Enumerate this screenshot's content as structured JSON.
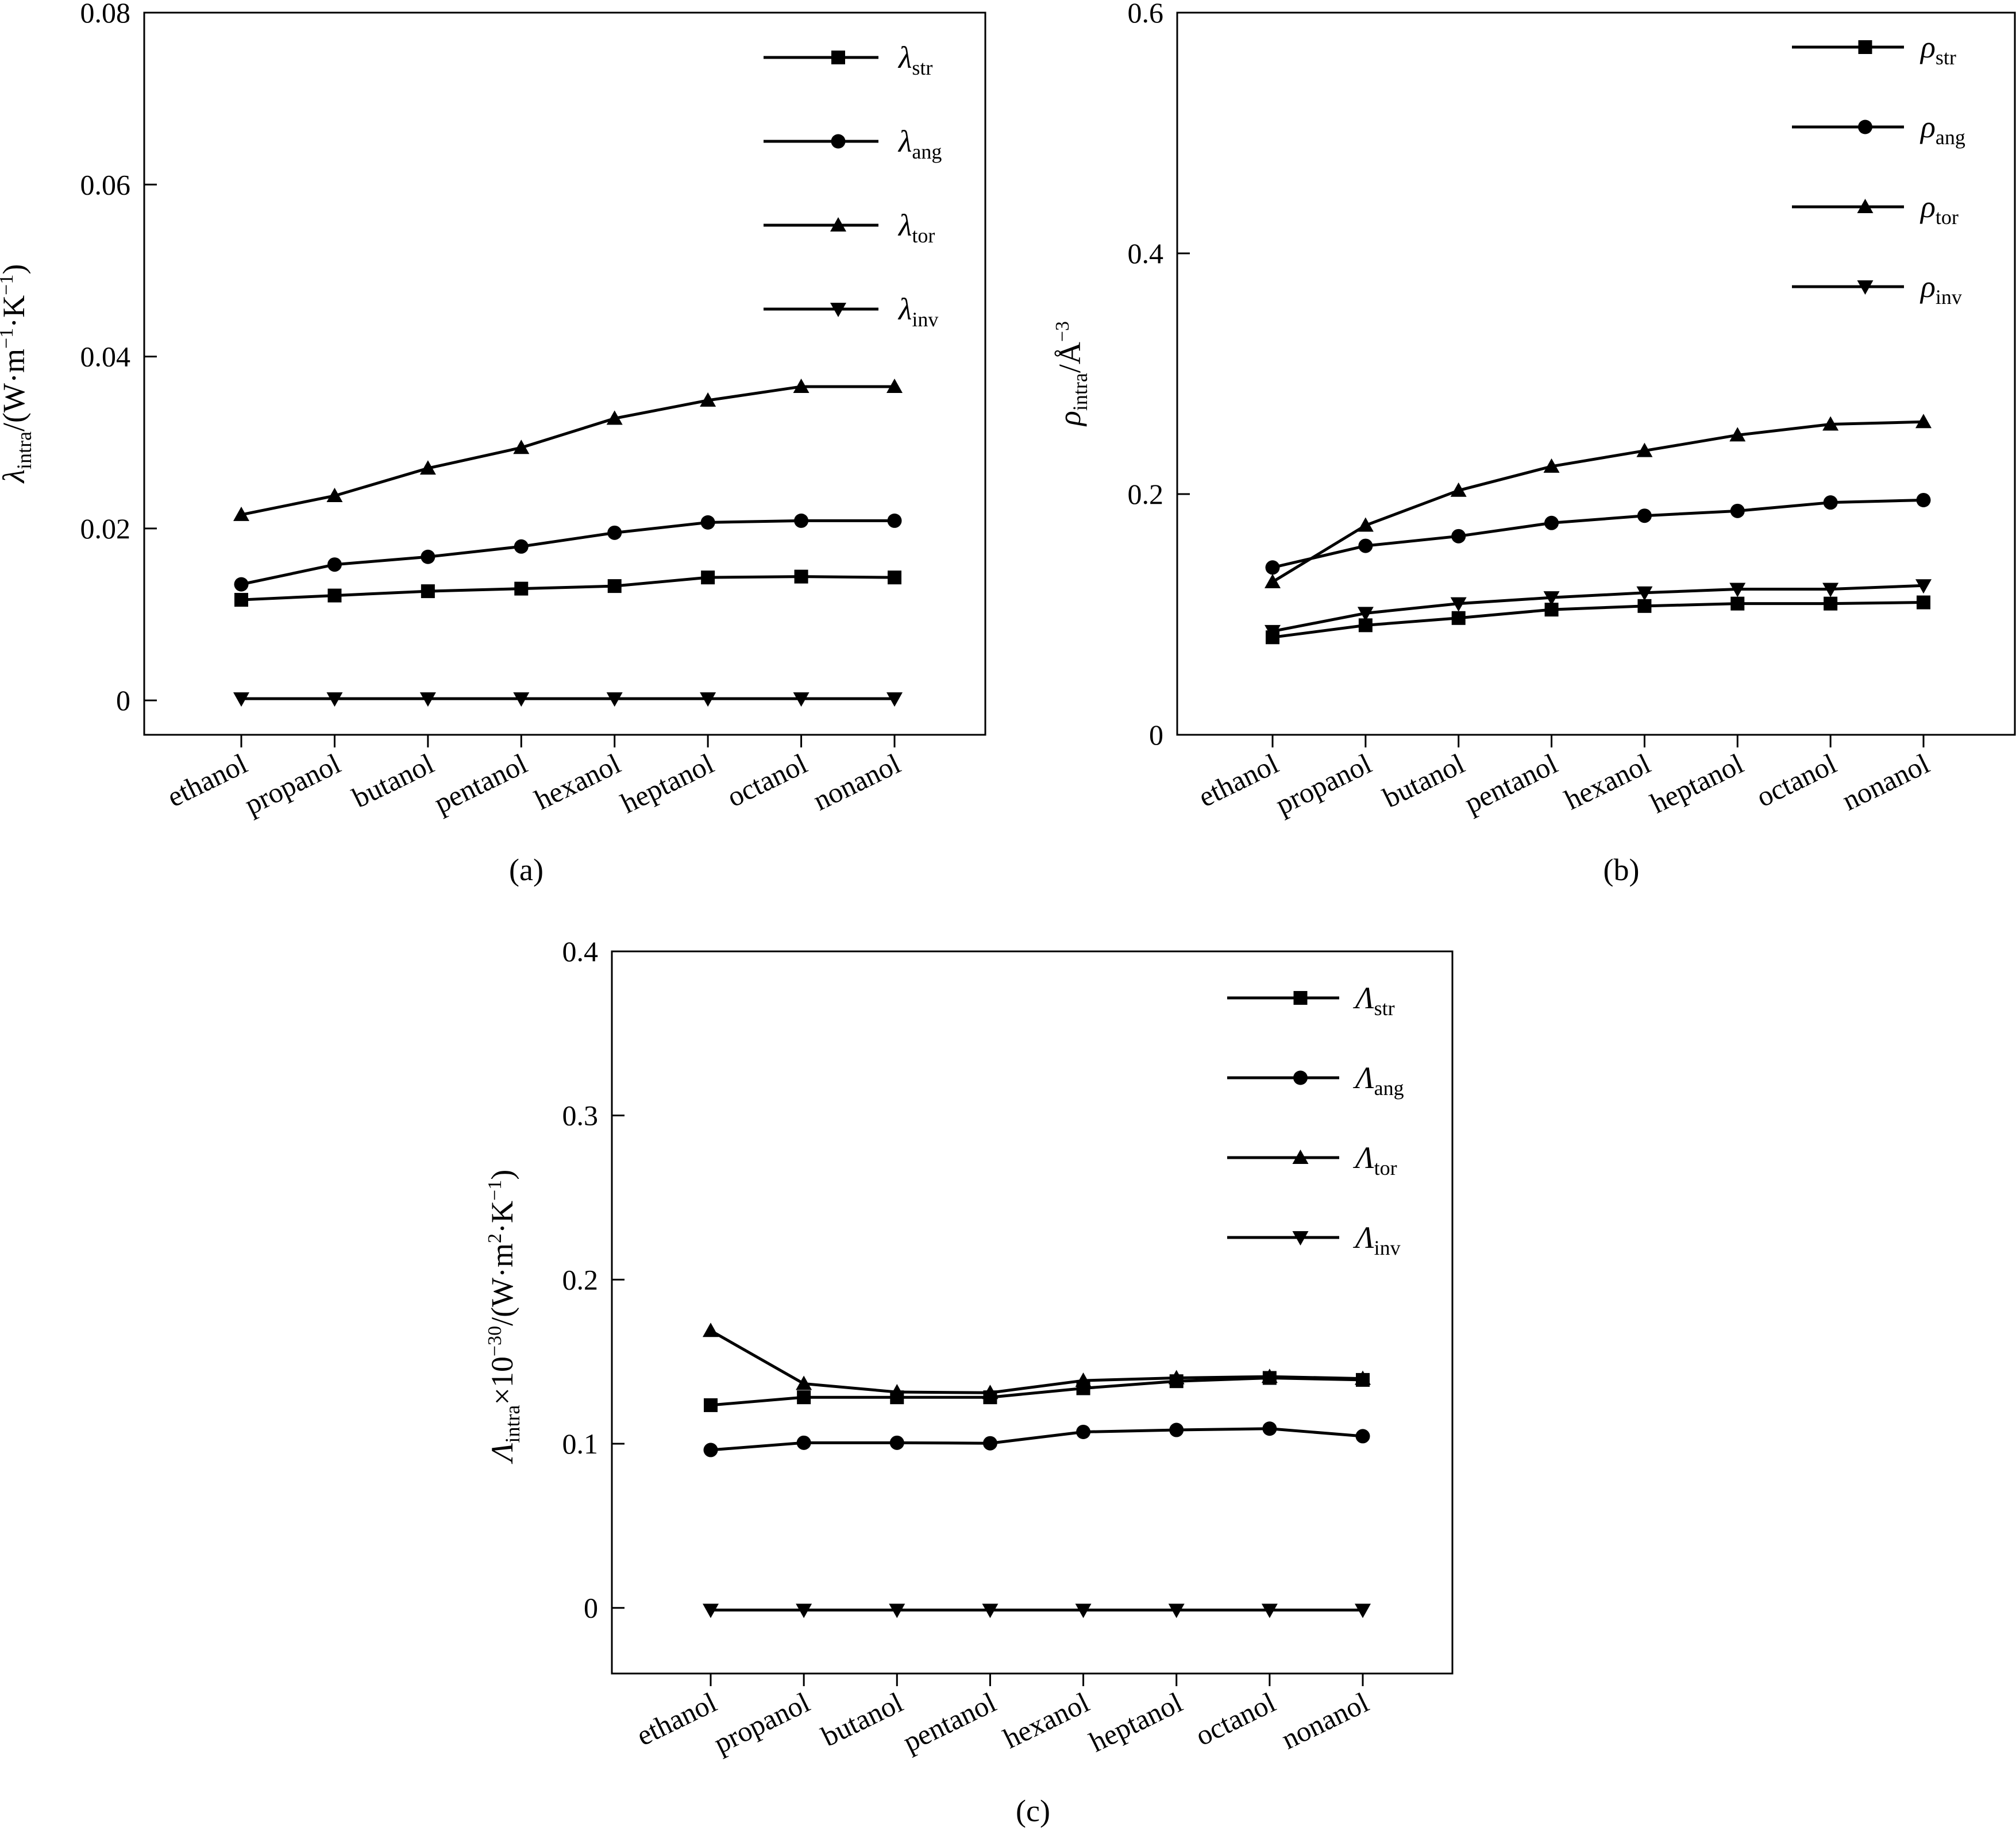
{
  "categories": [
    "ethanol",
    "propanol",
    "butanol",
    "pentanol",
    "hexanol",
    "heptanol",
    "octanol",
    "nonanol"
  ],
  "chart_data": [
    {
      "type": "line",
      "caption": "(a)",
      "ylabel": {
        "symbol": "λ",
        "sub": "intra",
        "rest": "/(W·m",
        "sup1": "−1",
        "mid": "·K",
        "sup2": "−1",
        "end": ")"
      },
      "ylim": [
        -0.004,
        0.08
      ],
      "yticks": [
        {
          "value": 0,
          "label": "0"
        },
        {
          "value": 0.02,
          "label": "0.02"
        },
        {
          "value": 0.04,
          "label": "0.04"
        },
        {
          "value": 0.06,
          "label": "0.06"
        },
        {
          "value": 0.08,
          "label": "0.08"
        }
      ],
      "legend_position": "top-right",
      "series": [
        {
          "symbol": "λ",
          "sub": "str",
          "marker": "square",
          "values": [
            0.0117,
            0.0122,
            0.0127,
            0.013,
            0.0133,
            0.0143,
            0.0144,
            0.0143
          ]
        },
        {
          "symbol": "λ",
          "sub": "ang",
          "marker": "circle",
          "values": [
            0.0135,
            0.0158,
            0.0167,
            0.0179,
            0.0195,
            0.0207,
            0.0209,
            0.0209
          ]
        },
        {
          "symbol": "λ",
          "sub": "tor",
          "marker": "triangle-up",
          "values": [
            0.0216,
            0.0238,
            0.027,
            0.0294,
            0.0328,
            0.0349,
            0.0365,
            0.0365
          ]
        },
        {
          "symbol": "λ",
          "sub": "inv",
          "marker": "triangle-down",
          "values": [
            0.0002,
            0.0002,
            0.0002,
            0.0002,
            0.0002,
            0.0002,
            0.0002,
            0.0002
          ]
        }
      ]
    },
    {
      "type": "line",
      "caption": "(b)",
      "ylabel": {
        "symbol": "ρ",
        "sub": "intra",
        "rest": "/Å",
        "sup1": "−3",
        "mid": "",
        "sup2": "",
        "end": ""
      },
      "ylim": [
        0,
        0.6
      ],
      "yticks": [
        {
          "value": 0,
          "label": "0"
        },
        {
          "value": 0.2,
          "label": "0.2"
        },
        {
          "value": 0.4,
          "label": "0.4"
        },
        {
          "value": 0.6,
          "label": "0.6"
        }
      ],
      "legend_position": "top-right",
      "series": [
        {
          "symbol": "ρ",
          "sub": "str",
          "marker": "square",
          "values": [
            0.081,
            0.091,
            0.097,
            0.104,
            0.107,
            0.109,
            0.109,
            0.11
          ]
        },
        {
          "symbol": "ρ",
          "sub": "ang",
          "marker": "circle",
          "values": [
            0.139,
            0.157,
            0.165,
            0.176,
            0.182,
            0.186,
            0.193,
            0.195
          ]
        },
        {
          "symbol": "ρ",
          "sub": "tor",
          "marker": "triangle-up",
          "values": [
            0.127,
            0.174,
            0.203,
            0.223,
            0.236,
            0.249,
            0.258,
            0.26
          ]
        },
        {
          "symbol": "ρ",
          "sub": "inv",
          "marker": "triangle-down",
          "values": [
            0.086,
            0.101,
            0.109,
            0.114,
            0.118,
            0.121,
            0.121,
            0.124
          ]
        }
      ]
    },
    {
      "type": "line",
      "caption": "(c)",
      "ylabel": {
        "symbol": "Λ",
        "sub": "intra",
        "rest": "×10",
        "sup1": "−30",
        "mid": "/(W·m",
        "sup2": "2",
        "end": "·K",
        "sup3": "−1",
        "end2": ")"
      },
      "ylim": [
        -0.04,
        0.4
      ],
      "yticks": [
        {
          "value": 0,
          "label": "0"
        },
        {
          "value": 0.1,
          "label": "0.1"
        },
        {
          "value": 0.2,
          "label": "0.2"
        },
        {
          "value": 0.3,
          "label": "0.3"
        },
        {
          "value": 0.4,
          "label": "0.4"
        }
      ],
      "legend_position": "top-right",
      "series": [
        {
          "symbol": "Λ",
          "sub": "str",
          "marker": "square",
          "values": [
            0.1235,
            0.1283,
            0.1283,
            0.1283,
            0.1338,
            0.1381,
            0.1401,
            0.1389
          ]
        },
        {
          "symbol": "Λ",
          "sub": "ang",
          "marker": "circle",
          "values": [
            0.0962,
            0.1006,
            0.1006,
            0.1003,
            0.1072,
            0.1084,
            0.1092,
            0.1046
          ]
        },
        {
          "symbol": "Λ",
          "sub": "tor",
          "marker": "triangle-up",
          "values": [
            0.1689,
            0.1366,
            0.1315,
            0.1311,
            0.1385,
            0.1401,
            0.1409,
            0.1397
          ]
        },
        {
          "symbol": "Λ",
          "sub": "inv",
          "marker": "triangle-down",
          "values": [
            -0.0013,
            -0.0013,
            -0.0013,
            -0.0013,
            -0.0013,
            -0.0013,
            -0.0013,
            -0.0013
          ]
        }
      ]
    }
  ]
}
